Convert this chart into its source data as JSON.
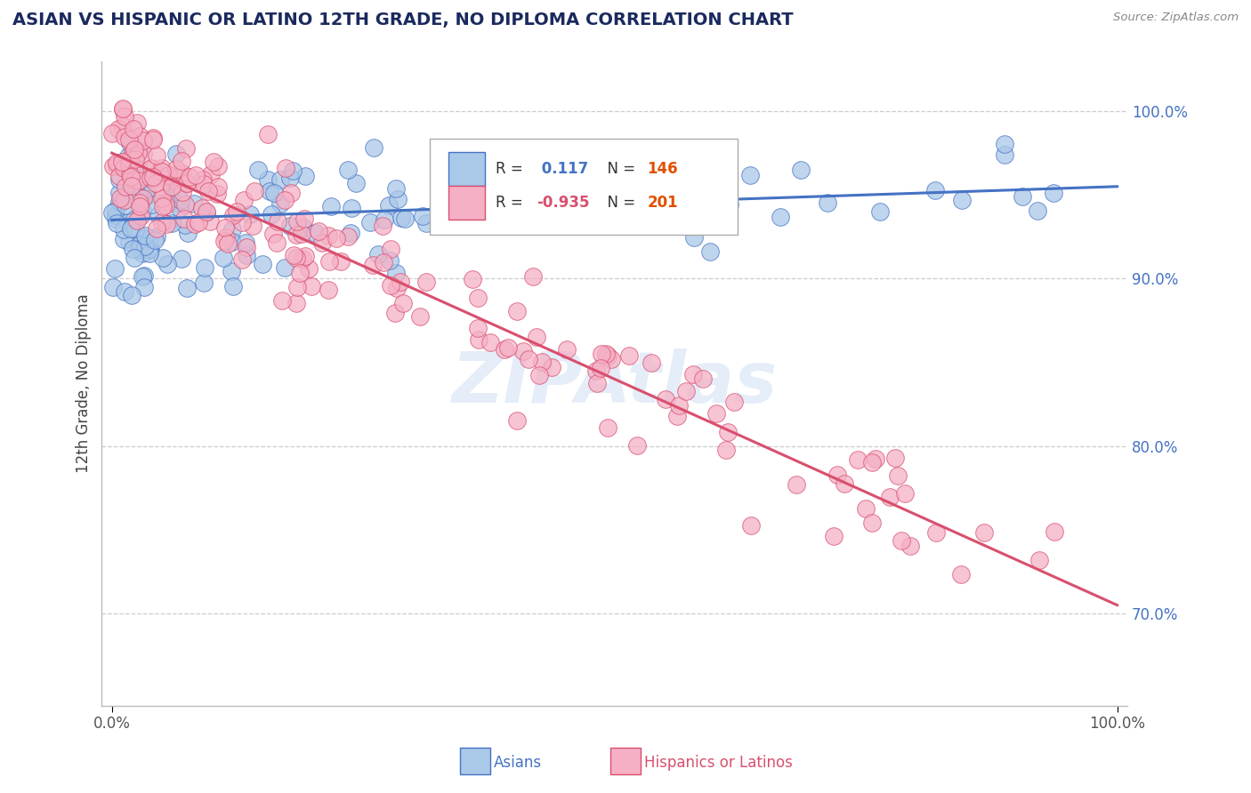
{
  "title": "ASIAN VS HISPANIC OR LATINO 12TH GRADE, NO DIPLOMA CORRELATION CHART",
  "source": "Source: ZipAtlas.com",
  "ylabel": "12th Grade, No Diploma",
  "r_asian": 0.117,
  "n_asian": 146,
  "r_hispanic": -0.935,
  "n_hispanic": 201,
  "xlim": [
    -0.01,
    1.01
  ],
  "ylim": [
    0.645,
    1.03
  ],
  "x_tick_labels": [
    "0.0%",
    "100.0%"
  ],
  "y_tick_positions": [
    0.7,
    0.8,
    0.9,
    1.0
  ],
  "y_tick_labels": [
    "70.0%",
    "80.0%",
    "90.0%",
    "100.0%"
  ],
  "color_asian": "#aac8e8",
  "color_hispanic": "#f5b0c5",
  "line_color_asian": "#4472c4",
  "line_color_hispanic": "#d94f6e",
  "watermark": "ZIPAtlas",
  "watermark_color": "#c5d8f0",
  "background_color": "#ffffff",
  "title_fontsize": 14,
  "legend_r_color_asian": "#4472c4",
  "legend_r_color_hispanic": "#d94f6e",
  "legend_n_color": "#e05000",
  "asian_line_start_y": 0.935,
  "asian_line_end_y": 0.955,
  "hispanic_line_start_y": 0.975,
  "hispanic_line_end_y": 0.705
}
